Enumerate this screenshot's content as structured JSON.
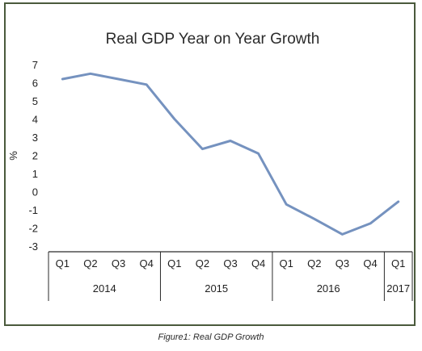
{
  "chart_data": {
    "type": "line",
    "title": "Real GDP Year on Year Growth",
    "ylabel": "%",
    "ylim": [
      -3,
      7
    ],
    "yticks": [
      7,
      6,
      5,
      4,
      3,
      2,
      1,
      0,
      -1,
      -2,
      -3
    ],
    "categories": [
      "Q1",
      "Q2",
      "Q3",
      "Q4",
      "Q1",
      "Q2",
      "Q3",
      "Q4",
      "Q1",
      "Q2",
      "Q3",
      "Q4",
      "Q1"
    ],
    "year_groups": [
      {
        "label": "2014",
        "count": 4
      },
      {
        "label": "2015",
        "count": 4
      },
      {
        "label": "2016",
        "count": 4
      },
      {
        "label": "2017",
        "count": 1
      }
    ],
    "series": [
      {
        "values": [
          6.2,
          6.5,
          6.2,
          5.9,
          4.0,
          2.35,
          2.8,
          2.1,
          -0.7,
          -1.5,
          -2.35,
          -1.75,
          -0.55
        ]
      }
    ],
    "colors": {
      "line": "#7592bf",
      "axis": "#2a2a2a"
    }
  },
  "caption": "Figure1: Real GDP Growth"
}
